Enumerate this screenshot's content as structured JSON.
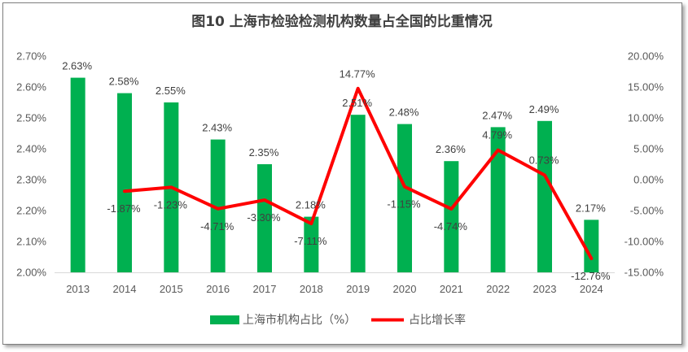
{
  "chart_data": {
    "type": "bar+line",
    "title": "图10 上海市检验检测机构数量占全国的比重情况",
    "categories": [
      "2013",
      "2014",
      "2015",
      "2016",
      "2017",
      "2018",
      "2019",
      "2020",
      "2021",
      "2022",
      "2023",
      "2024"
    ],
    "series": [
      {
        "name": "上海市机构占比（%）",
        "type": "bar",
        "axis": "left",
        "color": "#00b050",
        "values": [
          2.63,
          2.58,
          2.55,
          2.43,
          2.35,
          2.18,
          2.51,
          2.48,
          2.36,
          2.47,
          2.49,
          2.17
        ],
        "labels": [
          "2.63%",
          "2.58%",
          "2.55%",
          "2.43%",
          "2.35%",
          "2.18%",
          "2.51%",
          "2.48%",
          "2.36%",
          "2.47%",
          "2.49%",
          "2.17%"
        ]
      },
      {
        "name": "占比增长率",
        "type": "line",
        "axis": "right",
        "color": "#ff0000",
        "values": [
          null,
          -1.87,
          -1.23,
          -4.71,
          -3.3,
          -7.11,
          14.77,
          -1.15,
          -4.74,
          4.79,
          0.73,
          -12.76
        ],
        "labels": [
          null,
          "-1.87%",
          "-1.23%",
          "-4.71%",
          "-3.30%",
          "-7.11%",
          "14.77%",
          "-1.15%",
          "-4.74%",
          "4.79%",
          "0.73%",
          "-12.76%"
        ]
      }
    ],
    "y_left": {
      "min": 2.0,
      "max": 2.7,
      "step": 0.1,
      "tick_labels": [
        "2.00%",
        "2.10%",
        "2.20%",
        "2.30%",
        "2.40%",
        "2.50%",
        "2.60%",
        "2.70%"
      ]
    },
    "y_right": {
      "min": -15,
      "max": 20,
      "step": 5,
      "tick_labels": [
        "-15.00%",
        "-10.00%",
        "-5.00%",
        "0.00%",
        "5.00%",
        "10.00%",
        "15.00%",
        "20.00%"
      ]
    },
    "legend": [
      {
        "label": "上海市机构占比（%）",
        "color": "#00b050",
        "shape": "box"
      },
      {
        "label": "占比增长率",
        "color": "#ff0000",
        "shape": "line"
      }
    ],
    "legend_position": "bottom",
    "grid": false
  }
}
